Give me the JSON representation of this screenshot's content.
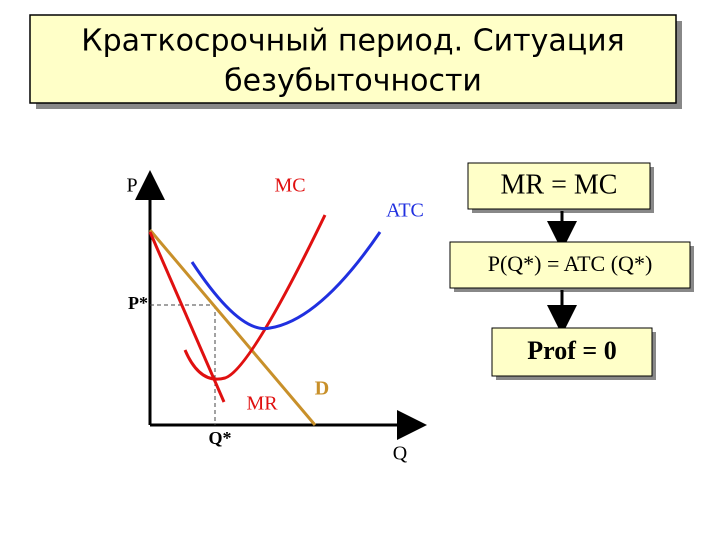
{
  "title": {
    "lines": [
      "Краткосрочный период. Ситуация",
      "безубыточности"
    ]
  },
  "axes": {
    "y_label": "P",
    "x_label": "Q",
    "price_level": "P*",
    "quantity_level": "Q*"
  },
  "curves": {
    "mc": "MC",
    "atc": "ATC",
    "mr": "MR",
    "demand": "D"
  },
  "boxes": [
    "MR = MC",
    "P(Q*) = ATC (Q*)",
    "Prof = 0"
  ]
}
